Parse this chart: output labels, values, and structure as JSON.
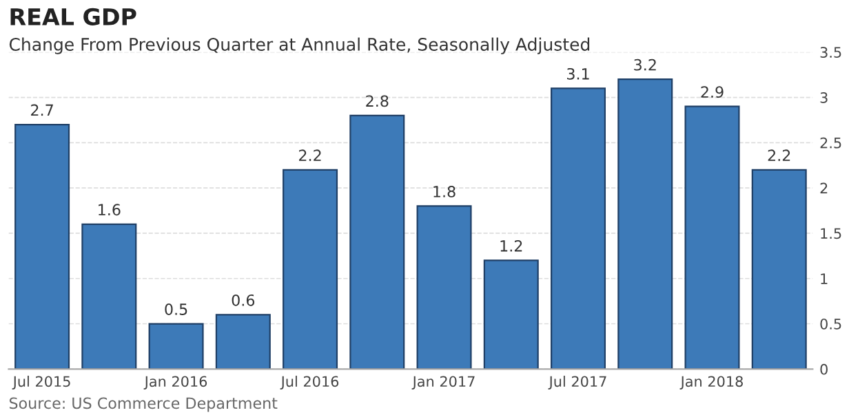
{
  "chart_data": {
    "type": "bar",
    "title": "REAL GDP",
    "subtitle": "Change From Previous Quarter at Annual Rate, Seasonally Adjusted",
    "categories": [
      "Jul 2015",
      null,
      "Jan 2016",
      null,
      "Jul 2016",
      null,
      "Jan 2017",
      null,
      "Jul 2017",
      null,
      "Jan 2018",
      null
    ],
    "values": [
      2.7,
      1.6,
      0.5,
      0.6,
      2.2,
      2.8,
      1.8,
      1.2,
      3.1,
      3.2,
      2.9,
      2.2
    ],
    "color": "#3d7ab8",
    "data_labels": true,
    "ylim": [
      0,
      3.5
    ],
    "yticks": [
      0,
      0.5,
      1,
      1.5,
      2,
      2.5,
      3,
      3.5
    ],
    "grid": "y",
    "annotations": [
      "Source: US Commerce Department"
    ]
  }
}
